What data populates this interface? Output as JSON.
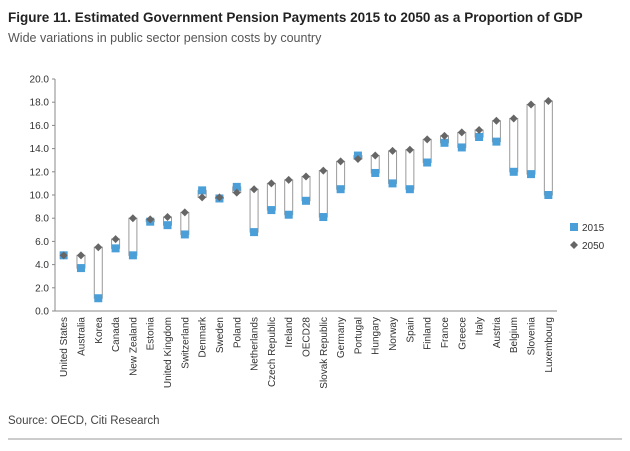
{
  "chart_data": {
    "type": "range",
    "title": "Figure 11. Estimated Government Pension Payments 2015 to 2050 as a Proportion of GDP",
    "subtitle": "Wide variations in public sector pension costs by country",
    "source": "Source: OECD, Citi Research",
    "categories": [
      "United States",
      "Australia",
      "Korea",
      "Canada",
      "New Zealand",
      "Estonia",
      "United Kingdom",
      "Switzerland",
      "Denmark",
      "Sweden",
      "Poland",
      "Netherlands",
      "Czech Republic",
      "Ireland",
      "OECD28",
      "Slovak Republic",
      "Germany",
      "Portugal",
      "Hungary",
      "Norway",
      "Spain",
      "Finland",
      "France",
      "Greece",
      "Italy",
      "Austria",
      "Belgium",
      "Slovenia",
      "Luxembourg"
    ],
    "series": [
      {
        "name": "2015",
        "color": "#4a9fd8",
        "marker": "square",
        "values": [
          4.8,
          3.7,
          1.1,
          5.4,
          4.8,
          7.7,
          7.4,
          6.6,
          10.4,
          9.7,
          10.7,
          6.8,
          8.7,
          8.3,
          9.5,
          8.1,
          10.5,
          13.4,
          11.9,
          11.0,
          10.5,
          12.8,
          14.5,
          14.1,
          15.0,
          14.6,
          12.0,
          11.8,
          10.0
        ]
      },
      {
        "name": "2050",
        "color": "#666666",
        "marker": "diamond",
        "values": [
          4.8,
          4.8,
          5.5,
          6.2,
          8.0,
          7.9,
          8.1,
          8.5,
          9.8,
          9.8,
          10.2,
          10.5,
          11.0,
          11.3,
          11.6,
          12.1,
          12.9,
          13.1,
          13.4,
          13.8,
          13.9,
          14.8,
          15.1,
          15.4,
          15.6,
          16.4,
          16.6,
          17.8,
          18.1
        ]
      }
    ],
    "ylim": [
      0,
      20
    ],
    "yticks": [
      {
        "value": 0,
        "label": "0.0"
      },
      {
        "value": 2,
        "label": "2.0"
      },
      {
        "value": 4,
        "label": "4.0"
      },
      {
        "value": 6,
        "label": "6.0"
      },
      {
        "value": 8,
        "label": "8.0"
      },
      {
        "value": 10,
        "label": "10.0"
      },
      {
        "value": 12,
        "label": "12.0"
      },
      {
        "value": 14,
        "label": "14.0"
      },
      {
        "value": 16,
        "label": "16.0"
      },
      {
        "value": 18,
        "label": "18.0"
      },
      {
        "value": 20,
        "label": "20.0"
      }
    ],
    "legend": "right"
  }
}
